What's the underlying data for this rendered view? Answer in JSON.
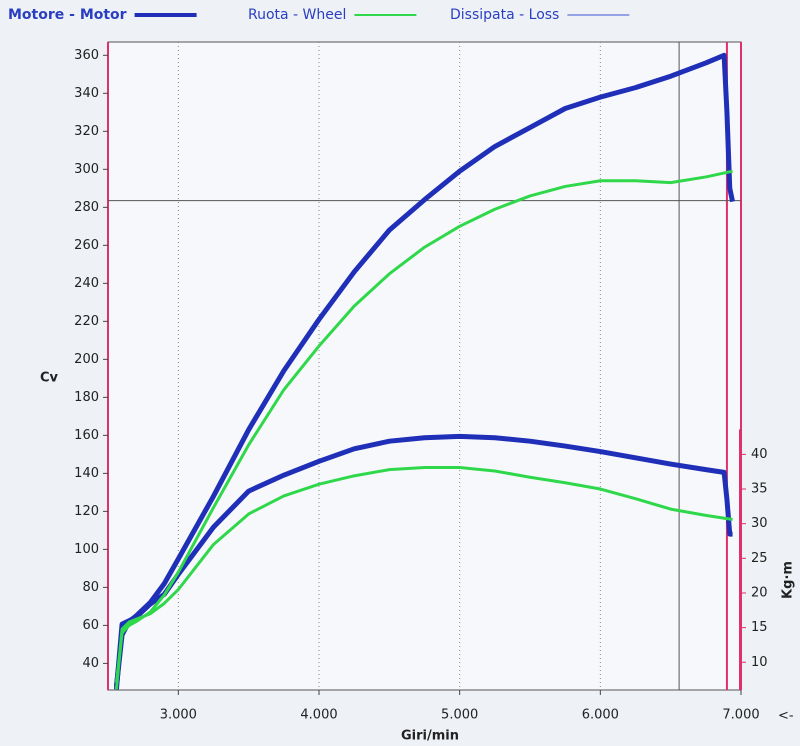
{
  "chart_data": {
    "type": "line",
    "legend": [
      "Motore - Motor",
      "Ruota - Wheel",
      "Dissipata - Loss"
    ],
    "y_label": "Cv",
    "x_label": "Giri/min",
    "y2_label": "Kg·m",
    "nav_label": "<-",
    "xlim": [
      2500,
      7000
    ],
    "xticks": [
      {
        "value": 3000,
        "label": "3.000"
      },
      {
        "value": 4000,
        "label": "4.000"
      },
      {
        "value": 5000,
        "label": "5.000"
      },
      {
        "value": 6000,
        "label": "6.000"
      },
      {
        "value": 7000,
        "label": "7.000"
      }
    ],
    "ylim": [
      26,
      367
    ],
    "yticks": [
      40,
      60,
      80,
      100,
      120,
      140,
      160,
      180,
      200,
      220,
      240,
      260,
      280,
      300,
      320,
      340,
      360
    ],
    "y2lim": [
      6,
      99.5
    ],
    "y2ticks": [
      10,
      15,
      20,
      25,
      30,
      35,
      40
    ],
    "xgrid": true,
    "cursor": {
      "x": 6560,
      "y": 283.5
    },
    "marker_x": 6900,
    "series": [
      {
        "name": "Motore - Motor",
        "color": "#1f2fb8",
        "width": 4,
        "x": [
          2560,
          2600,
          2650,
          2700,
          2800,
          2900,
          3000,
          3250,
          3500,
          3750,
          4000,
          4250,
          4500,
          4750,
          5000,
          5250,
          5500,
          5750,
          6000,
          6250,
          6500,
          6750,
          6880,
          6900,
          6920,
          6940
        ],
        "values": [
          28,
          55,
          62,
          65,
          72,
          82,
          95,
          128,
          163,
          194,
          221,
          246,
          268,
          284,
          299,
          312,
          322,
          332,
          338,
          343,
          349,
          356,
          360,
          330,
          290,
          283
        ],
        "torque": [
          6.1,
          15.5,
          16,
          16.5,
          18.4,
          19.8,
          22.7,
          29.5,
          34.7,
          37,
          39,
          40.8,
          41.9,
          42.4,
          42.6,
          42.4,
          41.9,
          41.2,
          40.4,
          39.5,
          38.6,
          37.8,
          37.4,
          33.5,
          28.5,
          28.5
        ]
      },
      {
        "name": "Ruota - Wheel",
        "color": "#2fd84a",
        "width": 2,
        "x": [
          2560,
          2600,
          2650,
          2700,
          2800,
          2900,
          3000,
          3250,
          3500,
          3750,
          4000,
          4250,
          4500,
          4750,
          5000,
          5250,
          5500,
          5750,
          6000,
          6250,
          6500,
          6750,
          6940
        ],
        "values": [
          30,
          56,
          60,
          62,
          67,
          76,
          88,
          122,
          155,
          184,
          207,
          228,
          245,
          259,
          270,
          279,
          286,
          291,
          294,
          294,
          293,
          296,
          299
        ],
        "torque": [
          6.1,
          14.8,
          15.8,
          16.2,
          17,
          18.5,
          20.5,
          27,
          31.4,
          34,
          35.7,
          36.9,
          37.8,
          38.1,
          38.1,
          37.6,
          36.7,
          35.9,
          35,
          33.6,
          32.1,
          31.2,
          30.6
        ]
      },
      {
        "name": "Dissipata - Loss",
        "color": "#3a55d0",
        "width": 1
      }
    ]
  }
}
